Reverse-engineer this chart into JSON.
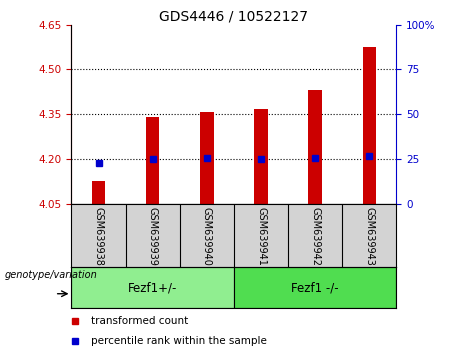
{
  "title": "GDS4446 / 10522127",
  "samples": [
    "GSM639938",
    "GSM639939",
    "GSM639940",
    "GSM639941",
    "GSM639942",
    "GSM639943"
  ],
  "red_bar_values": [
    4.125,
    4.34,
    4.357,
    4.367,
    4.432,
    4.575
  ],
  "blue_dot_values": [
    4.185,
    4.2,
    4.203,
    4.2,
    4.203,
    4.21
  ],
  "y_min": 4.05,
  "y_max": 4.65,
  "y_ticks_left": [
    4.05,
    4.2,
    4.35,
    4.5,
    4.65
  ],
  "y_ticks_right": [
    0,
    25,
    50,
    75,
    100
  ],
  "dotted_lines": [
    4.2,
    4.35,
    4.5
  ],
  "group1_label": "Fezf1+/-",
  "group1_indices": [
    0,
    1,
    2
  ],
  "group2_label": "Fezf1 -/-",
  "group2_indices": [
    3,
    4,
    5
  ],
  "legend_red_label": "transformed count",
  "legend_blue_label": "percentile rank within the sample",
  "genotype_label": "genotype/variation",
  "bar_color": "#cc0000",
  "dot_color": "#0000cc",
  "group1_bg": "#90ee90",
  "group2_bg": "#50dd50",
  "axis_label_color_left": "#cc0000",
  "axis_label_color_right": "#0000cc",
  "plot_bg": "#ffffff",
  "sample_bg": "#d3d3d3",
  "bar_width": 0.25,
  "title_fontsize": 10,
  "tick_fontsize": 7.5,
  "sample_fontsize": 7,
  "group_fontsize": 8.5,
  "legend_fontsize": 7.5
}
